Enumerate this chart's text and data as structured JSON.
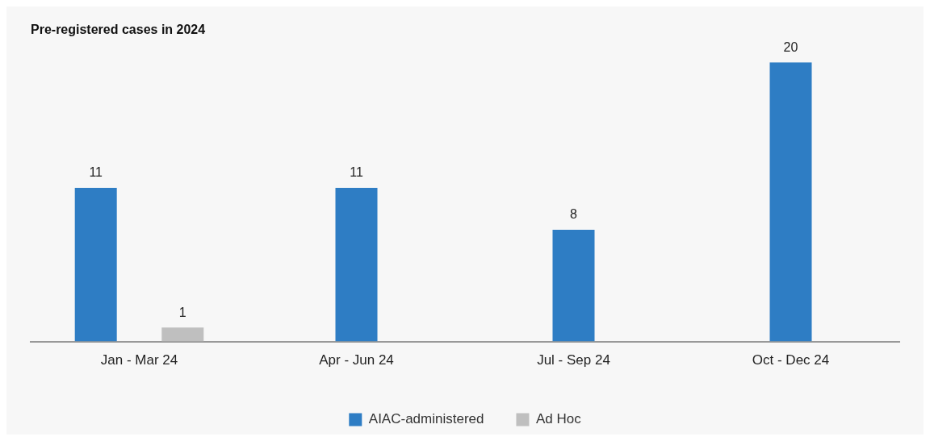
{
  "chart_data": {
    "type": "bar",
    "title": "Pre-registered cases in 2024",
    "categories": [
      "Jan - Mar 24",
      "Apr - Jun 24",
      "Jul - Sep 24",
      "Oct - Dec 24"
    ],
    "series": [
      {
        "name": "AIAC-administered",
        "color": "#2e7dc4",
        "values": [
          11,
          11,
          8,
          20
        ]
      },
      {
        "name": "Ad Hoc",
        "color": "#bfbfbf",
        "values": [
          1,
          null,
          null,
          null
        ]
      }
    ],
    "data_labels": true,
    "legend": "bottom",
    "grid": false
  }
}
